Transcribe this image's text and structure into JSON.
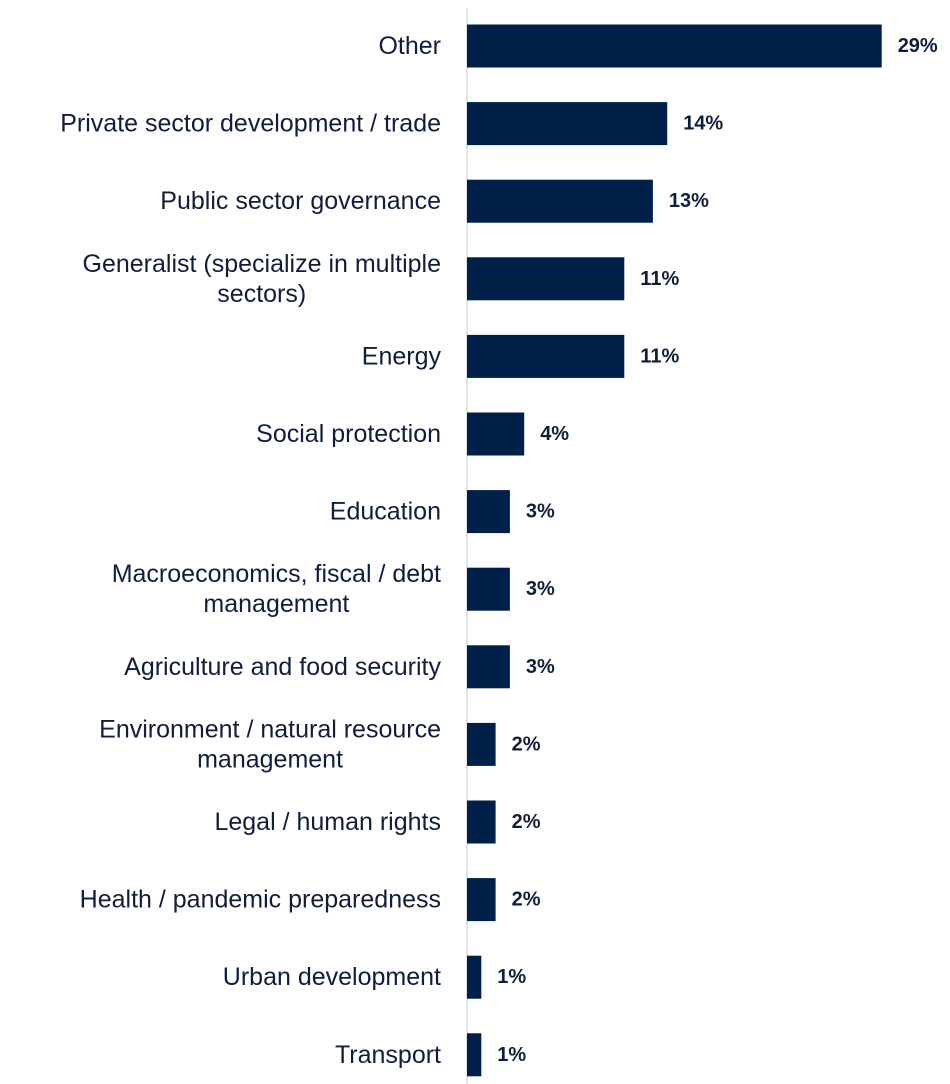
{
  "chart_data": {
    "type": "bar",
    "orientation": "horizontal",
    "categories": [
      "Other",
      "Private sector development / trade",
      "Public sector governance",
      "Generalist (specialize in multiple sectors)",
      "Energy",
      "Social protection",
      "Education",
      "Macroeconomics, fiscal / debt management",
      "Agriculture and food security",
      "Environment / natural resource management",
      "Legal / human rights",
      "Health / pandemic preparedness",
      "Urban development",
      "Transport"
    ],
    "category_lines": [
      [
        "Other"
      ],
      [
        "Private sector development / trade"
      ],
      [
        "Public sector governance"
      ],
      [
        "Generalist (specialize in multiple",
        "sectors)"
      ],
      [
        "Energy"
      ],
      [
        "Social protection"
      ],
      [
        "Education"
      ],
      [
        "Macroeconomics, fiscal / debt",
        "management"
      ],
      [
        "Agriculture and food security"
      ],
      [
        "Environment / natural resource",
        "management"
      ],
      [
        "Legal / human rights"
      ],
      [
        "Health / pandemic preparedness"
      ],
      [
        "Urban development"
      ],
      [
        "Transport"
      ]
    ],
    "values": [
      29,
      14,
      13,
      11,
      11,
      4,
      3,
      3,
      3,
      2,
      2,
      2,
      1,
      1
    ],
    "value_labels": [
      "29%",
      "14%",
      "13%",
      "11%",
      "11%",
      "4%",
      "3%",
      "3%",
      "3%",
      "2%",
      "2%",
      "2%",
      "1%",
      "1%"
    ],
    "title": "",
    "xlabel": "",
    "ylabel": "",
    "xlim": [
      0,
      29
    ],
    "grid": false,
    "legend": "none",
    "bar_color": "#00204a",
    "axis_color": "#d9d9d9",
    "text_color": "#0f1e3a"
  }
}
